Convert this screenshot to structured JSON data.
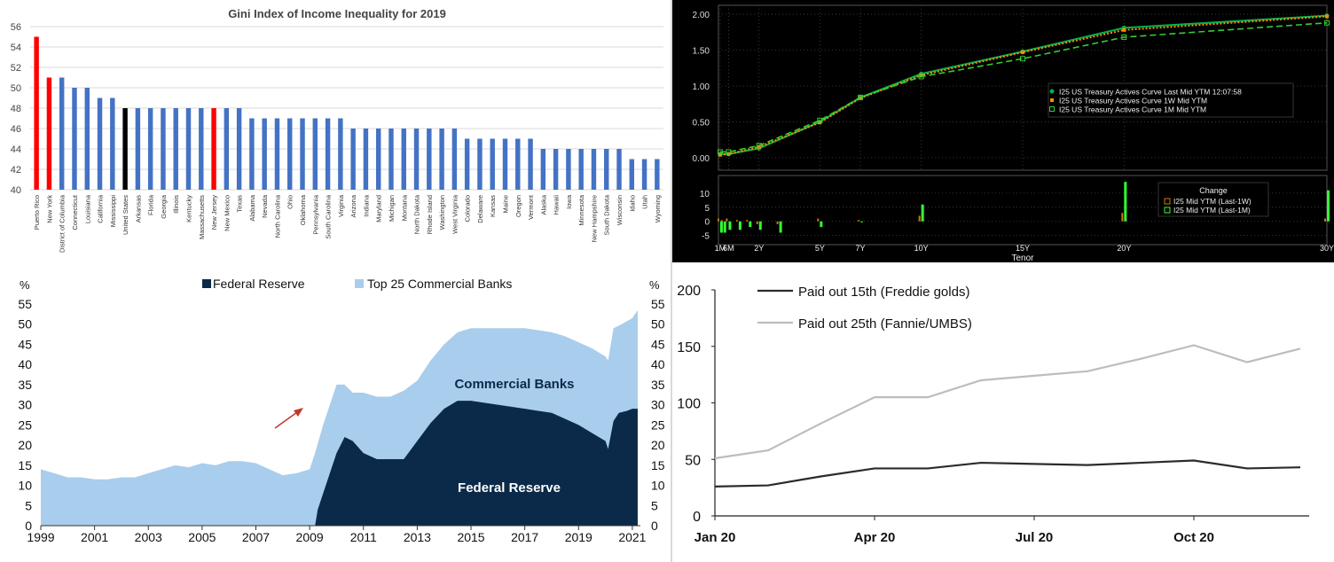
{
  "chart_data": [
    {
      "type": "bar",
      "title": "Gini Index of Income Inequality for 2019",
      "ylim": [
        40,
        56
      ],
      "yticks": [
        40,
        42,
        44,
        46,
        48,
        50,
        52,
        54,
        56
      ],
      "grid": true,
      "categories": [
        "Puerto Rico",
        "New York",
        "District of Columbia",
        "Connecticut",
        "Louisiana",
        "California",
        "Mississippi",
        "United States",
        "Arkansas",
        "Florida",
        "Georgia",
        "Illinois",
        "Kentucky",
        "Massachusetts",
        "New Jersey",
        "New Mexico",
        "Texas",
        "Alabama",
        "Nevada",
        "North Carolina",
        "Ohio",
        "Oklahoma",
        "Pennsylvania",
        "South Carolina",
        "Virginia",
        "Arizona",
        "Indiana",
        "Maryland",
        "Michigan",
        "Montana",
        "North Dakota",
        "Rhode Island",
        "Washington",
        "West Virginia",
        "Colorado",
        "Delaware",
        "Kansas",
        "Maine",
        "Oregon",
        "Vermont",
        "Alaska",
        "Hawaii",
        "Iowa",
        "Minnesota",
        "New Hampshire",
        "South Dakota",
        "Wisconsin",
        "Idaho",
        "Utah",
        "Wyoming"
      ],
      "values": [
        55,
        51,
        51,
        50,
        50,
        49,
        49,
        48,
        48,
        48,
        48,
        48,
        48,
        48,
        48,
        48,
        48,
        47,
        47,
        47,
        47,
        47,
        47,
        47,
        47,
        46,
        46,
        46,
        46,
        46,
        46,
        46,
        46,
        46,
        45,
        45,
        45,
        45,
        45,
        45,
        44,
        44,
        44,
        44,
        44,
        44,
        44,
        43,
        43,
        43
      ],
      "colors": {
        "default": "#4472c4",
        "Puerto Rico": "#ff0000",
        "New York": "#ff0000",
        "New Jersey": "#ff0000",
        "United States": "#000000"
      }
    },
    {
      "type": "line",
      "x": [
        "1M",
        "6M",
        "2Y",
        "5Y",
        "7Y",
        "10Y",
        "15Y",
        "20Y",
        "30Y"
      ],
      "x_positions_years": [
        0.083,
        0.5,
        2,
        5,
        7,
        10,
        15,
        20,
        30
      ],
      "series": [
        {
          "name": "I25 US Treasury Actives Curve Last Mid YTM 12:07:58",
          "values": [
            0.05,
            0.05,
            0.13,
            0.5,
            0.84,
            1.17,
            1.48,
            1.81,
            1.98
          ],
          "color": "#00b050"
        },
        {
          "name": "I25 US Treasury Actives Curve 1W Mid YTM",
          "values": [
            0.04,
            0.05,
            0.15,
            0.49,
            0.83,
            1.15,
            1.47,
            1.78,
            1.97
          ],
          "color": "#ff8c00"
        },
        {
          "name": "I25 US Treasury Actives Curve 1M Mid YTM",
          "values": [
            0.08,
            0.08,
            0.17,
            0.52,
            0.84,
            1.13,
            1.38,
            1.68,
            1.88
          ],
          "color": "#33cc33"
        }
      ],
      "yticks": [
        "0.00",
        "0.50",
        "1.00",
        "1.50",
        "2.00"
      ],
      "ylim": [
        -0.1,
        2.05
      ],
      "change_panel": {
        "title": "Change",
        "xlabel": "Tenor",
        "yticks": [
          "10",
          "5",
          "0",
          "-5"
        ],
        "ylim": [
          -7,
          15
        ],
        "series": [
          {
            "name": "I25 Mid YTM (Last-1W)",
            "color": "#cc7a00"
          },
          {
            "name": "I25 Mid YTM (Last-1M)",
            "color": "#33ff33"
          }
        ],
        "bars": [
          {
            "x": 0.083,
            "w": 1,
            "m": -4
          },
          {
            "x": 0.25,
            "w": 0.5,
            "m": -4
          },
          {
            "x": 0.5,
            "w": 1,
            "m": -3
          },
          {
            "x": 1,
            "w": 0.5,
            "m": -3
          },
          {
            "x": 1.5,
            "w": 0.5,
            "m": -2
          },
          {
            "x": 2,
            "w": -1,
            "m": -3
          },
          {
            "x": 3,
            "w": -1,
            "m": -4
          },
          {
            "x": 5,
            "w": 1,
            "m": -2
          },
          {
            "x": 7,
            "w": 0.5,
            "m": 0
          },
          {
            "x": 10,
            "w": 2,
            "m": 6
          },
          {
            "x": 20,
            "w": 3,
            "m": 14
          },
          {
            "x": 30,
            "w": 1,
            "m": 11
          }
        ]
      }
    },
    {
      "type": "area",
      "legend_position": "top",
      "ylabel_left": "%",
      "ylabel_right": "%",
      "ylim": [
        0,
        55
      ],
      "yticks": [
        0,
        5,
        10,
        15,
        20,
        25,
        30,
        35,
        40,
        45,
        50,
        55
      ],
      "xticks": [
        "1999",
        "2001",
        "2003",
        "2005",
        "2007",
        "2009",
        "2011",
        "2013",
        "2015",
        "2017",
        "2019",
        "2021"
      ],
      "series": [
        {
          "name": "Federal Reserve",
          "color": "#0b2a4a",
          "x": [
            1999,
            2009.2,
            2009.3,
            2009.6,
            2010,
            2010.3,
            2010.6,
            2011,
            2011.5,
            2012,
            2012.5,
            2013,
            2013.5,
            2014,
            2014.5,
            2015,
            2015.5,
            2016,
            2016.5,
            2017,
            2017.5,
            2018,
            2018.5,
            2019,
            2019.5,
            2020,
            2020.1,
            2020.3,
            2020.5,
            2020.8,
            2021,
            2021.2
          ],
          "values": [
            0,
            0,
            4,
            10,
            18,
            22,
            21,
            18,
            16.5,
            16.5,
            16.5,
            21,
            25.5,
            29,
            31,
            31,
            30.5,
            30,
            29.5,
            29,
            28.5,
            28,
            26.5,
            25,
            23,
            21,
            19,
            26,
            28,
            28.5,
            29,
            29
          ]
        },
        {
          "name": "Top 25 Commercial Banks",
          "color": "#a9cdec",
          "x": [
            1999,
            1999.5,
            2000,
            2000.5,
            2001,
            2001.5,
            2002,
            2002.5,
            2003,
            2003.5,
            2004,
            2004.5,
            2005,
            2005.5,
            2006,
            2006.5,
            2007,
            2007.5,
            2008,
            2008.5,
            2009,
            2009.2,
            2009.5,
            2009.8,
            2010,
            2010.3,
            2010.6,
            2011,
            2011.5,
            2012,
            2012.5,
            2013,
            2013.5,
            2014,
            2014.5,
            2015,
            2015.5,
            2016,
            2016.5,
            2017,
            2017.5,
            2018,
            2018.5,
            2019,
            2019.5,
            2020,
            2020.1,
            2020.3,
            2020.6,
            2021,
            2021.2
          ],
          "values": [
            14,
            13,
            12,
            12,
            11.5,
            11.5,
            12,
            12,
            13,
            14,
            15,
            14.5,
            15.5,
            15,
            16,
            16,
            15.5,
            14,
            12.5,
            13,
            14,
            18,
            25,
            31,
            35,
            35,
            33,
            33,
            32,
            32,
            33.5,
            36,
            41,
            45,
            48,
            49,
            49,
            49,
            49,
            49,
            48.5,
            48,
            47,
            45.5,
            44,
            42,
            41,
            49,
            50,
            51.5,
            53.5
          ]
        }
      ],
      "annotations": [
        "Commercial Banks",
        "Federal Reserve"
      ]
    },
    {
      "type": "line",
      "ylim": [
        0,
        200
      ],
      "yticks": [
        0,
        50,
        100,
        150,
        200
      ],
      "xticks": [
        "Jan 20",
        "Apr 20",
        "Jul 20",
        "Oct 20"
      ],
      "x": [
        0,
        1,
        2,
        3,
        4,
        5,
        6,
        7,
        8,
        9,
        10,
        11
      ],
      "series": [
        {
          "name": "Paid out 15th (Freddie golds)",
          "color": "#2b2b2b",
          "values": [
            26,
            27,
            35,
            42,
            42,
            47,
            46,
            45,
            47,
            49,
            42,
            43
          ]
        },
        {
          "name": "Paid out 25th (Fannie/UMBS)",
          "color": "#bdbdbd",
          "values": [
            51,
            58,
            82,
            105,
            105,
            120,
            124,
            128,
            139,
            151,
            136,
            148
          ]
        }
      ]
    }
  ]
}
